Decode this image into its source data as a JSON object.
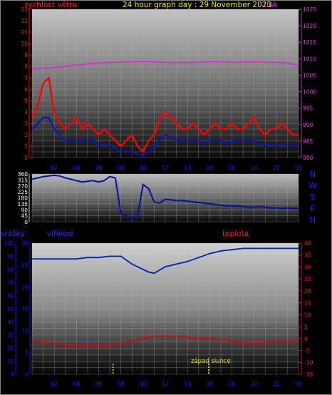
{
  "header": {
    "left_title": "rychlost větru",
    "center_title": "24 hour graph day : 29 November 2023",
    "right_title": "tlak"
  },
  "lower_header": {
    "left_label": "srážky",
    "humidity_label": "vlhkost",
    "temperature_label": "teplota"
  },
  "annotation": {
    "sunset": "západ slunce"
  },
  "colors": {
    "wind_gust": "#ff0000",
    "wind_avg": "#1010c8",
    "pressure": "#e020e0",
    "direction": "#0010a0",
    "humidity": "#0020b0",
    "temperature": "#e00000",
    "wind_axis": "#ff2020",
    "pressure_axis": "#e040e0",
    "rain_axis": "#2020ff",
    "temp_axis": "#ff2020",
    "title": "#f0e020",
    "sun_marker": "#e8e040"
  },
  "chart_data": [
    {
      "type": "line",
      "panel": "wind-pressure",
      "title": "24 hour graph day : 29 November 2023",
      "x_ticks": [
        "02",
        "04",
        "06",
        "08",
        "10",
        "12",
        "14",
        "16",
        "18",
        "20",
        "22",
        "00"
      ],
      "y_left": {
        "label": "rychlost větru",
        "ticks": [
          "0",
          "1",
          "2",
          "3",
          "4",
          "5",
          "6",
          "7",
          "8",
          "9",
          "10",
          "11",
          "12",
          "13"
        ],
        "range": [
          0,
          13
        ]
      },
      "y_right": {
        "label": "tlak",
        "ticks": [
          "980",
          "985",
          "990",
          "995",
          "1000",
          "1005",
          "1010",
          "1015",
          "1020",
          "1025"
        ],
        "range": [
          980,
          1025
        ]
      },
      "series": [
        {
          "axis": "right",
          "x": [
            0,
            1,
            2,
            3,
            4,
            5,
            6,
            7,
            8,
            9,
            10,
            11,
            12,
            13,
            14,
            15,
            16,
            17,
            18,
            19,
            20,
            21,
            22,
            23,
            24
          ],
          "values": [
            1006.8,
            1007.1,
            1007.4,
            1007.7,
            1008.0,
            1008.4,
            1008.7,
            1008.9,
            1009.0,
            1009.1,
            1009.2,
            1009.1,
            1008.9,
            1008.8,
            1008.9,
            1009.0,
            1009.1,
            1009.1,
            1009.0,
            1009.0,
            1009.1,
            1009.0,
            1008.9,
            1008.7,
            1008.0
          ]
        },
        {
          "axis": "left",
          "x": [
            0,
            0.5,
            1,
            1.5,
            2,
            2.5,
            3,
            3.5,
            4,
            4.5,
            5,
            5.5,
            6,
            6.5,
            7,
            7.5,
            8,
            8.5,
            9,
            9.5,
            10,
            10.5,
            11,
            11.5,
            12,
            12.5,
            13,
            13.5,
            14,
            14.5,
            15,
            15.5,
            16,
            16.5,
            17,
            17.5,
            18,
            18.5,
            19,
            19.5,
            20,
            20.5,
            21,
            21.5,
            22,
            22.5,
            23,
            23.5,
            24
          ],
          "values": [
            3.5,
            4.5,
            6.5,
            7.0,
            4.0,
            3.0,
            2.5,
            3.0,
            3.5,
            2.5,
            3.0,
            2.5,
            2.0,
            2.5,
            2.0,
            1.5,
            1.0,
            1.5,
            2.0,
            1.0,
            0.5,
            1.5,
            2.0,
            3.5,
            4.0,
            3.5,
            3.0,
            2.5,
            2.5,
            3.0,
            2.5,
            2.0,
            2.5,
            3.0,
            2.5,
            2.5,
            3.0,
            2.5,
            2.5,
            3.0,
            3.5,
            2.5,
            2.0,
            2.5,
            2.5,
            3.0,
            2.5,
            2.0,
            2.0
          ]
        },
        {
          "axis": "left",
          "x": [
            0,
            0.5,
            1,
            1.5,
            2,
            2.5,
            3,
            3.5,
            4,
            4.5,
            5,
            5.5,
            6,
            6.5,
            7,
            7.5,
            8,
            8.5,
            9,
            9.5,
            10,
            10.5,
            11,
            11.5,
            12,
            12.5,
            13,
            13.5,
            14,
            14.5,
            15,
            15.5,
            16,
            16.5,
            17,
            17.5,
            18,
            18.5,
            19,
            19.5,
            20,
            20.5,
            21,
            21.5,
            22,
            22.5,
            23,
            23.5,
            24
          ],
          "values": [
            2.5,
            3.0,
            3.5,
            3.5,
            2.5,
            2.0,
            1.5,
            1.5,
            1.5,
            1.5,
            1.5,
            1.5,
            1.0,
            1.2,
            1.0,
            0.8,
            0.5,
            0.5,
            0.5,
            0.3,
            0.2,
            0.5,
            1.0,
            1.5,
            2.0,
            1.8,
            1.5,
            1.5,
            1.5,
            1.5,
            1.5,
            1.2,
            1.5,
            1.5,
            1.5,
            1.2,
            1.5,
            1.5,
            1.5,
            1.5,
            1.5,
            1.2,
            1.0,
            1.2,
            1.0,
            1.2,
            1.0,
            1.0,
            1.0
          ]
        }
      ]
    },
    {
      "type": "line",
      "panel": "wind-direction",
      "y_left": {
        "ticks": [
          "0",
          "45",
          "90",
          "135",
          "180",
          "225",
          "270",
          "315",
          "360"
        ],
        "range": [
          0,
          360
        ]
      },
      "y_right_labels": [
        "N",
        "W",
        "S",
        "E",
        "N"
      ],
      "series": [
        {
          "x": [
            0,
            0.5,
            1,
            1.5,
            2,
            2.5,
            3,
            3.5,
            4,
            4.5,
            5,
            5.5,
            6,
            6.5,
            7,
            7.5,
            8,
            8.5,
            9,
            9.5,
            10,
            10.5,
            11,
            11.5,
            12,
            12.5,
            13,
            13.5,
            14,
            14.5,
            15,
            15.5,
            16,
            16.5,
            17,
            17.5,
            18,
            18.5,
            19,
            19.5,
            20,
            20.5,
            21,
            21.5,
            22,
            22.5,
            23,
            23.5,
            24
          ],
          "values": [
            320,
            330,
            340,
            345,
            350,
            345,
            330,
            320,
            310,
            300,
            305,
            310,
            300,
            310,
            340,
            330,
            60,
            40,
            30,
            40,
            280,
            250,
            150,
            140,
            170,
            165,
            160,
            160,
            155,
            150,
            145,
            140,
            135,
            130,
            125,
            120,
            120,
            118,
            115,
            112,
            110,
            115,
            110,
            105,
            105,
            100,
            105,
            100,
            100
          ]
        }
      ]
    },
    {
      "type": "line",
      "panel": "humidity-temperature",
      "y_left_label": "srážky",
      "y_left_ticks": [
        "0",
        "5",
        "10",
        "15",
        "20",
        "25",
        "30"
      ],
      "y_left_range": [
        0,
        30
      ],
      "humidity_ticks": [
        "0",
        "10",
        "20",
        "30",
        "40",
        "50",
        "60",
        "70",
        "80",
        "90",
        "100"
      ],
      "humidity_range": [
        0,
        100
      ],
      "y_right": {
        "label": "teplota",
        "ticks": [
          "-15",
          "-10",
          "-5",
          "0",
          "5",
          "10",
          "15",
          "20",
          "25",
          "30",
          "35",
          "40"
        ],
        "range": [
          -15,
          40
        ]
      },
      "series": [
        {
          "x": [
            0,
            1,
            2,
            3,
            4,
            5,
            6,
            7,
            8,
            9,
            10,
            10.5,
            11,
            12,
            13,
            14,
            15,
            16,
            17,
            18,
            19,
            20,
            21,
            22,
            23,
            24
          ],
          "values": [
            88,
            88,
            88,
            88,
            88,
            89,
            89,
            90,
            90,
            84,
            80,
            78,
            77,
            82,
            84,
            86,
            89,
            92,
            94,
            95,
            96,
            96,
            96,
            96,
            96,
            96
          ]
        },
        {
          "x": [
            0,
            1,
            2,
            3,
            4,
            5,
            6,
            7,
            8,
            9,
            10,
            11,
            12,
            13,
            14,
            15,
            16,
            17,
            18,
            19,
            20,
            21,
            22,
            23,
            24
          ],
          "values": [
            -1.0,
            -1.5,
            -2.0,
            -2.5,
            -3.0,
            -3.0,
            -3.0,
            -3.0,
            -2.0,
            -1.0,
            0.0,
            1.0,
            1.0,
            1.0,
            0.5,
            0.0,
            0.0,
            -0.5,
            -1.0,
            -1.5,
            -2.0,
            -1.5,
            -1.0,
            -1.0,
            -1.0
          ]
        }
      ],
      "sun_markers": [
        {
          "x": 7.3,
          "label": ""
        },
        {
          "x": 15.9,
          "label": "západ slunce"
        }
      ]
    }
  ]
}
